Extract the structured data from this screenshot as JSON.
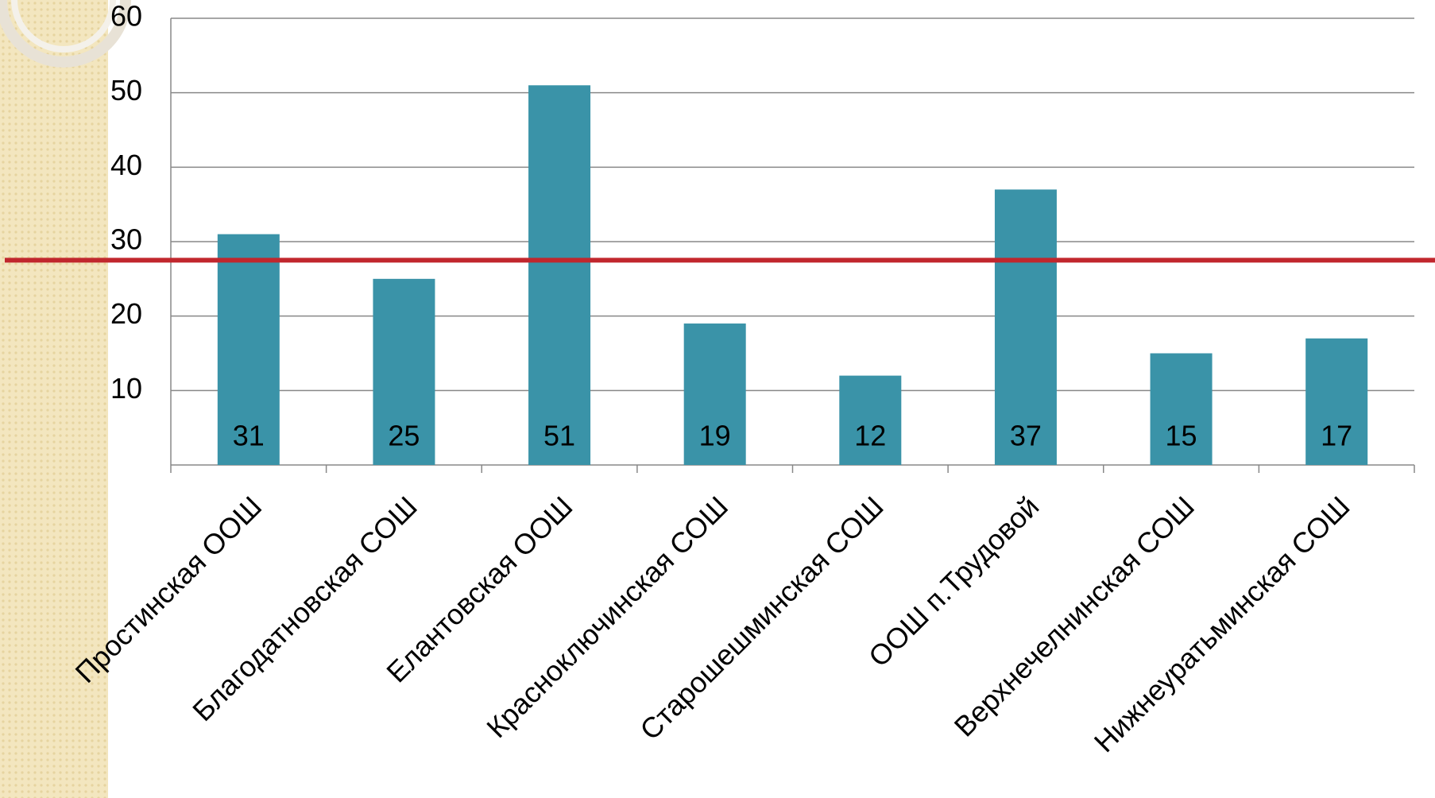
{
  "chart_data": {
    "type": "bar",
    "categories": [
      "Простинская ООШ",
      "Благодатновская СОШ",
      "Елантовская ООШ",
      "Красноключинская СОШ",
      "Старошешминская СОШ",
      "ООШ п.Трудовой",
      "Верхнечелнинская СОШ",
      "Нижнеуратьминская СОШ"
    ],
    "values": [
      31,
      25,
      51,
      19,
      12,
      37,
      15,
      17
    ],
    "color": "#3a93a8",
    "ylim": [
      0,
      60
    ],
    "yticks": [
      10,
      20,
      30,
      40,
      50,
      60
    ],
    "grid": true,
    "reference_line": {
      "value": 27.5,
      "color": "#c1272d"
    }
  }
}
